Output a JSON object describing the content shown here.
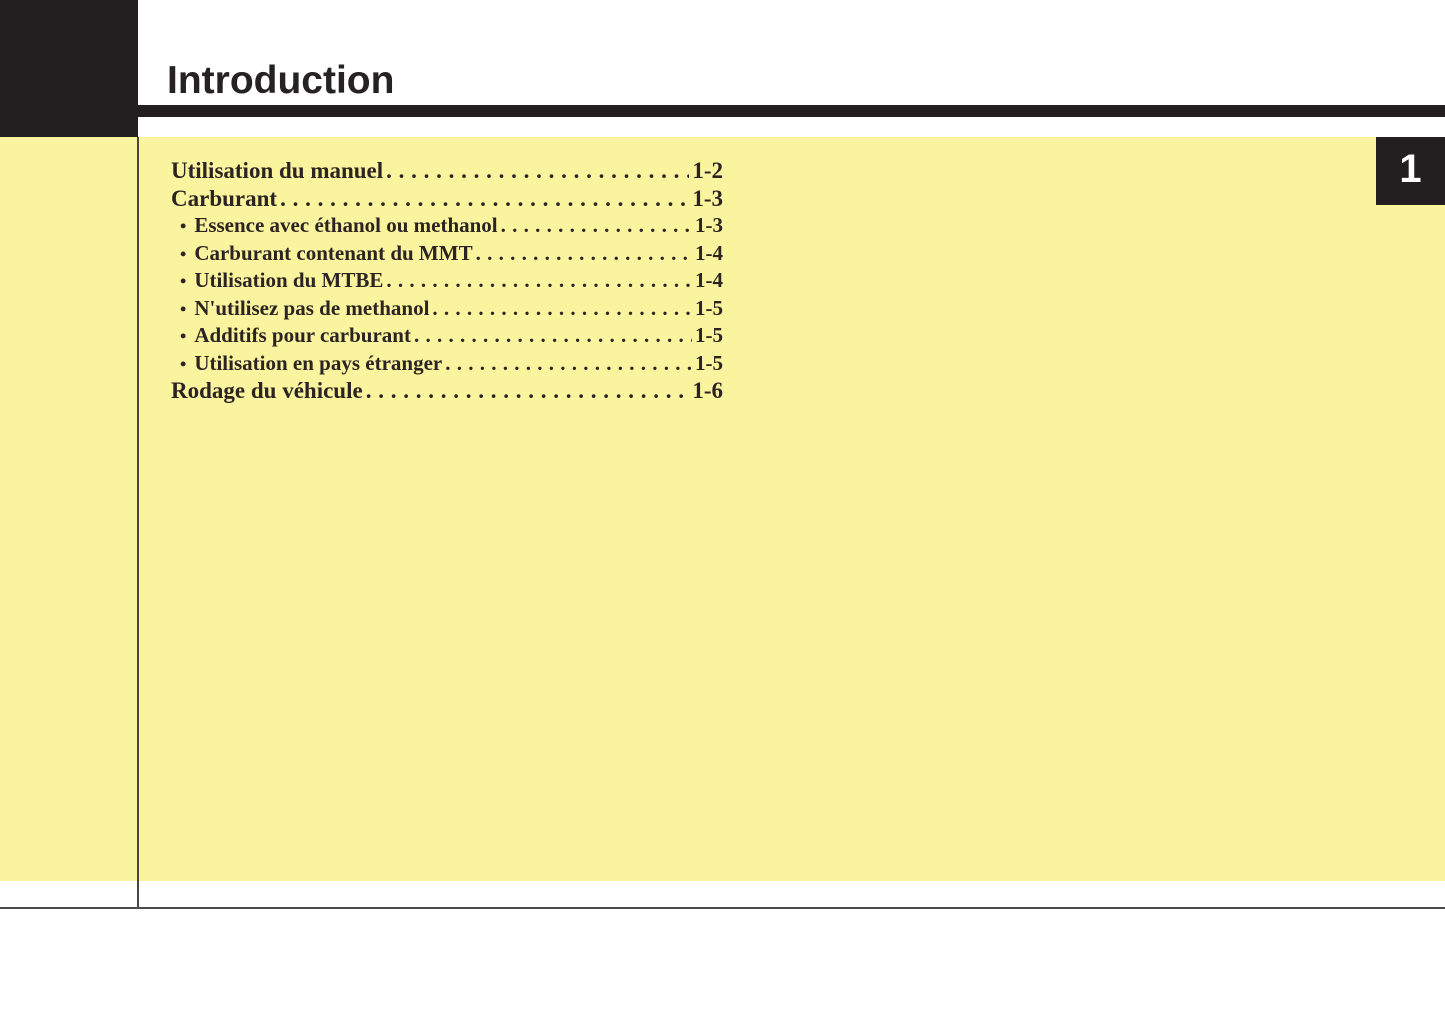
{
  "header": {
    "title": "Introduction"
  },
  "tab": {
    "number": "1"
  },
  "toc": {
    "bullet": "•",
    "leader": ". . . . . . . . . . . . . . . . . . . . . . . . . . . . . . . . . . . . . . . . . . . . . . . . . . . . . . . . . . . . . . . . . . . . . . . . . . . . . . . . . . . . . . . .",
    "entries": [
      {
        "label": "Utilisation du manuel",
        "page": "1-2",
        "level": 1
      },
      {
        "label": "Carburant",
        "page": "1-3",
        "level": 1
      },
      {
        "label": "Essence avec éthanol ou methanol",
        "page": "1-3",
        "level": 2
      },
      {
        "label": "Carburant contenant du MMT",
        "page": "1-4",
        "level": 2
      },
      {
        "label": "Utilisation du MTBE",
        "page": "1-4",
        "level": 2
      },
      {
        "label": "N'utilisez pas de methanol",
        "page": "1-5",
        "level": 2
      },
      {
        "label": "Additifs pour carburant",
        "page": "1-5",
        "level": 2
      },
      {
        "label": "Utilisation en pays étranger",
        "page": "1-5",
        "level": 2
      },
      {
        "label": "Rodage du véhicule",
        "page": "1-6",
        "level": 1
      }
    ]
  },
  "colors": {
    "highlight_yellow": "#fbf49e",
    "ink_black": "#231f20"
  }
}
